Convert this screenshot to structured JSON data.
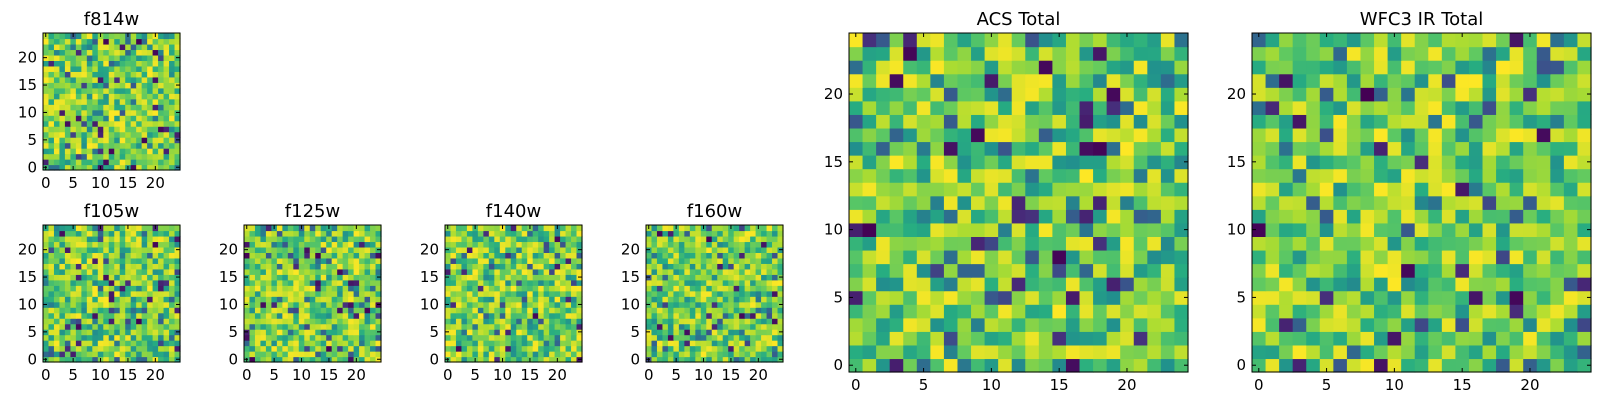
{
  "chart_data": [
    {
      "type": "heatmap",
      "title": "f814w",
      "xlabel": "",
      "ylabel": "",
      "grid_size": [
        25,
        25
      ],
      "xlim": [
        -0.5,
        24.5
      ],
      "ylim": [
        -0.5,
        24.5
      ],
      "xticks": [
        0,
        5,
        10,
        15,
        20
      ],
      "yticks": [
        0,
        5,
        10,
        15,
        20
      ],
      "colormap": "viridis",
      "grid": false,
      "seed": 11
    },
    {
      "type": "heatmap",
      "title": "f105w",
      "xlabel": "",
      "ylabel": "",
      "grid_size": [
        25,
        25
      ],
      "xlim": [
        -0.5,
        24.5
      ],
      "ylim": [
        -0.5,
        24.5
      ],
      "xticks": [
        0,
        5,
        10,
        15,
        20
      ],
      "yticks": [
        0,
        5,
        10,
        15,
        20
      ],
      "colormap": "viridis",
      "grid": false,
      "seed": 23
    },
    {
      "type": "heatmap",
      "title": "f125w",
      "xlabel": "",
      "ylabel": "",
      "grid_size": [
        25,
        25
      ],
      "xlim": [
        -0.5,
        24.5
      ],
      "ylim": [
        -0.5,
        24.5
      ],
      "xticks": [
        0,
        5,
        10,
        15,
        20
      ],
      "yticks": [
        0,
        5,
        10,
        15,
        20
      ],
      "colormap": "viridis",
      "grid": false,
      "seed": 37
    },
    {
      "type": "heatmap",
      "title": "f140w",
      "xlabel": "",
      "ylabel": "",
      "grid_size": [
        25,
        25
      ],
      "xlim": [
        -0.5,
        24.5
      ],
      "ylim": [
        -0.5,
        24.5
      ],
      "xticks": [
        0,
        5,
        10,
        15,
        20
      ],
      "yticks": [
        0,
        5,
        10,
        15,
        20
      ],
      "colormap": "viridis",
      "grid": false,
      "seed": 41
    },
    {
      "type": "heatmap",
      "title": "f160w",
      "xlabel": "",
      "ylabel": "",
      "grid_size": [
        25,
        25
      ],
      "xlim": [
        -0.5,
        24.5
      ],
      "ylim": [
        -0.5,
        24.5
      ],
      "xticks": [
        0,
        5,
        10,
        15,
        20
      ],
      "yticks": [
        0,
        5,
        10,
        15,
        20
      ],
      "colormap": "viridis",
      "grid": false,
      "seed": 53
    },
    {
      "type": "heatmap",
      "title": "ACS Total",
      "xlabel": "",
      "ylabel": "",
      "grid_size": [
        25,
        25
      ],
      "xlim": [
        -0.5,
        24.5
      ],
      "ylim": [
        -0.5,
        24.5
      ],
      "xticks": [
        0,
        5,
        10,
        15,
        20
      ],
      "yticks": [
        0,
        5,
        10,
        15,
        20
      ],
      "colormap": "viridis",
      "grid": false,
      "seed": 67
    },
    {
      "type": "heatmap",
      "title": "WFC3 IR Total",
      "xlabel": "",
      "ylabel": "",
      "grid_size": [
        25,
        25
      ],
      "xlim": [
        -0.5,
        24.5
      ],
      "ylim": [
        -0.5,
        24.5
      ],
      "xticks": [
        0,
        5,
        10,
        15,
        20
      ],
      "yticks": [
        0,
        5,
        10,
        15,
        20
      ],
      "colormap": "viridis",
      "grid": false,
      "seed": 79
    }
  ]
}
